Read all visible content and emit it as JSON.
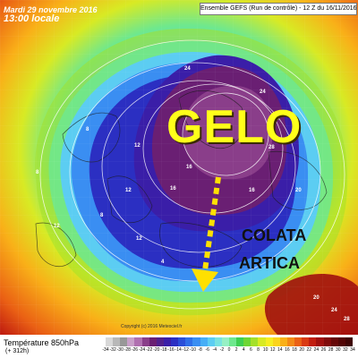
{
  "header": {
    "date_line": "Mardi 29 novembre 2016",
    "time_line": "13:00 locale",
    "ensemble_title": "Ensemble GEFS (Run de contrôle) - 12 Z du 16/11/2016"
  },
  "overlay": {
    "main_label": "GELO",
    "arrow_label_line1": "COLATA",
    "arrow_label_line2": "ARTICA",
    "arrow_color": "#ffe000",
    "label_color": "#ffff1a"
  },
  "legend": {
    "title": "Température 850hPa",
    "subtitle": "(+ 312h)",
    "ticks": [
      "-34",
      "-32",
      "-30",
      "-28",
      "-26",
      "-24",
      "-22",
      "-20",
      "-18",
      "-16",
      "-14",
      "-12",
      "-10",
      "-8",
      "-6",
      "-4",
      "-2",
      "0",
      "2",
      "4",
      "6",
      "8",
      "10",
      "12",
      "14",
      "16",
      "18",
      "20",
      "22",
      "24",
      "26",
      "28",
      "30",
      "32",
      "34"
    ],
    "colors": [
      "#d8d8d8",
      "#b8b8b8",
      "#989898",
      "#c9a0c9",
      "#b070b0",
      "#8a3e8a",
      "#6a1f73",
      "#51208c",
      "#3a1ea8",
      "#2b2fc2",
      "#2a4ed8",
      "#2f6ee8",
      "#3a8ef2",
      "#46aef6",
      "#5ccdf2",
      "#79e3e0",
      "#96f0c4",
      "#6ee88e",
      "#3ecf52",
      "#6dd634",
      "#a4e02a",
      "#d8ea24",
      "#f6ee22",
      "#fbd41c",
      "#f9b018",
      "#f38a16",
      "#ea6014",
      "#d93a12",
      "#c11e10",
      "#a0100e",
      "#800a0a",
      "#660808",
      "#520606",
      "#3e0505"
    ]
  },
  "copyright": "Copyright (c) 2016 Meteociel.fr",
  "isobar_labels": [
    "24",
    "20",
    "28",
    "24",
    "20",
    "16",
    "12",
    "8",
    "16",
    "12",
    "16",
    "8",
    "12",
    "4",
    "12",
    "8",
    "20",
    "24",
    "28"
  ]
}
